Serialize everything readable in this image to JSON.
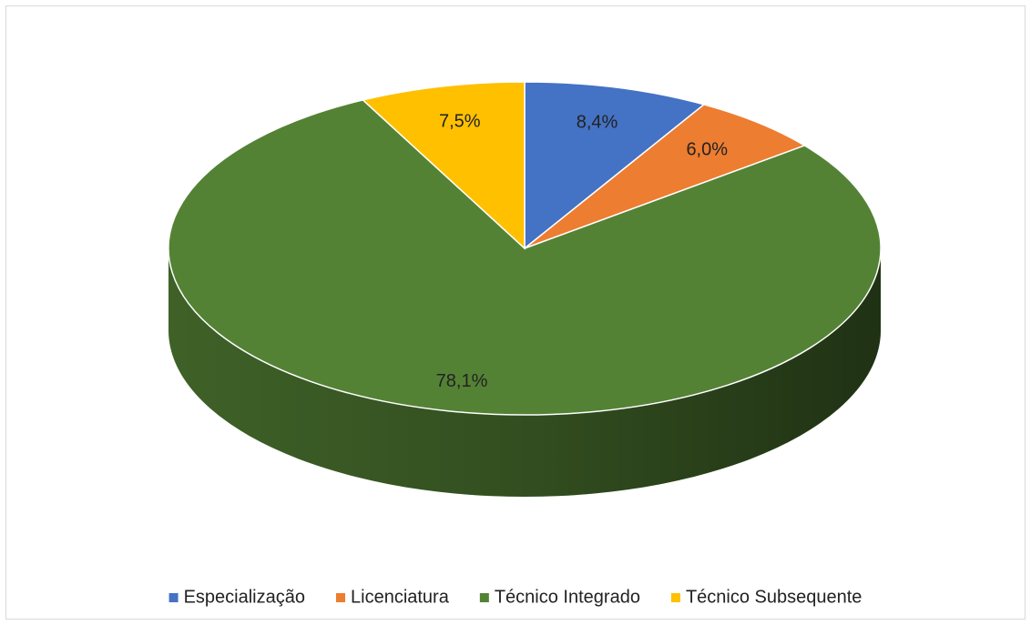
{
  "chart_data": {
    "type": "pie",
    "categories": [
      "Especialização",
      "Licenciatura",
      "Técnico Integrado",
      "Técnico Subsequente"
    ],
    "values": [
      8.4,
      6.0,
      78.1,
      7.5
    ],
    "value_labels": [
      "8,4%",
      "6,0%",
      "78,1%",
      "7,5%"
    ],
    "colors": [
      "#4472c4",
      "#ed7d31",
      "#548235",
      "#ffc000"
    ],
    "legend": "bottom"
  }
}
